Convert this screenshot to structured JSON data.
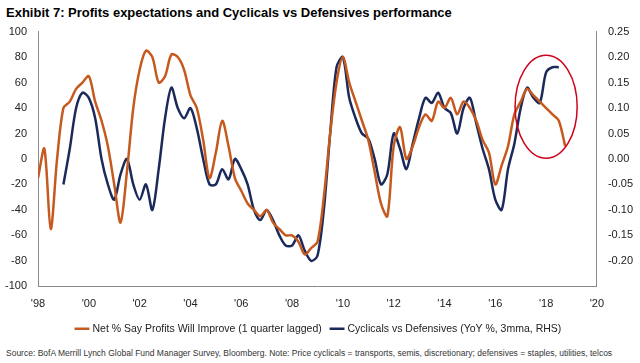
{
  "chart_data": {
    "type": "line",
    "title": "Exhibit 7: Profits expectations and Cyclicals vs Defensives performance",
    "source": "Source:  BofA Merrill Lynch Global Fund Manager Survey, Bloomberg. Note: Price cyclicals = transports, semis, discretionary; defensives = staples, utilities, telcos",
    "x": [
      1998,
      1998.25,
      1998.5,
      1998.75,
      1999,
      1999.25,
      1999.5,
      1999.75,
      2000,
      2000.25,
      2000.5,
      2000.75,
      2001,
      2001.25,
      2001.5,
      2001.75,
      2002,
      2002.25,
      2002.5,
      2002.75,
      2003,
      2003.25,
      2003.5,
      2003.75,
      2004,
      2004.25,
      2004.5,
      2004.75,
      2005,
      2005.25,
      2005.5,
      2005.75,
      2006,
      2006.25,
      2006.5,
      2006.75,
      2007,
      2007.25,
      2007.5,
      2007.75,
      2008,
      2008.25,
      2008.5,
      2008.75,
      2009,
      2009.25,
      2009.5,
      2009.75,
      2010,
      2010.25,
      2010.5,
      2010.75,
      2011,
      2011.25,
      2011.5,
      2011.75,
      2012,
      2012.25,
      2012.5,
      2012.75,
      2013,
      2013.25,
      2013.5,
      2013.75,
      2014,
      2014.25,
      2014.5,
      2014.75,
      2015,
      2015.25,
      2015.5,
      2015.75,
      2016,
      2016.25,
      2016.5,
      2016.75,
      2017,
      2017.25,
      2017.5,
      2017.75,
      2018,
      2018.25,
      2018.5,
      2018.75
    ],
    "series": [
      {
        "name": "Net % Say Profits Will Improve (1 quarter lagged)",
        "color": "#c65a1e",
        "axis": "y",
        "values": [
          -15,
          8,
          -55,
          0,
          40,
          45,
          55,
          60,
          65,
          45,
          30,
          10,
          -20,
          -50,
          -10,
          40,
          70,
          85,
          80,
          60,
          65,
          82,
          80,
          70,
          50,
          40,
          15,
          -15,
          5,
          30,
          10,
          -15,
          -25,
          -35,
          -40,
          -45,
          -40,
          -50,
          -55,
          -60,
          -60,
          -65,
          -75,
          -70,
          -65,
          -30,
          20,
          60,
          80,
          60,
          45,
          30,
          15,
          -10,
          -35,
          -45,
          10,
          25,
          0,
          10,
          25,
          35,
          30,
          45,
          40,
          48,
          35,
          45,
          40,
          30,
          15,
          5,
          -20,
          -5,
          10,
          35,
          45,
          55,
          50,
          45,
          40,
          35,
          30,
          10
        ]
      },
      {
        "name": "Cyclicals vs Defensives (YoY %, 3mma, RHS)",
        "color": "#1b2a5a",
        "axis": "y2",
        "values": [
          null,
          null,
          null,
          null,
          -0.05,
          0.02,
          0.1,
          0.13,
          0.12,
          0.08,
          0.0,
          -0.05,
          -0.08,
          -0.03,
          0.0,
          -0.05,
          -0.08,
          -0.05,
          -0.1,
          -0.02,
          0.08,
          0.14,
          0.1,
          0.08,
          0.1,
          0.06,
          0.0,
          -0.05,
          -0.05,
          -0.02,
          -0.04,
          0.0,
          -0.02,
          -0.05,
          -0.1,
          -0.12,
          -0.1,
          -0.12,
          -0.15,
          -0.17,
          -0.17,
          -0.15,
          -0.18,
          -0.2,
          -0.19,
          -0.1,
          0.05,
          0.18,
          0.2,
          0.12,
          0.08,
          0.05,
          0.04,
          0.0,
          -0.05,
          -0.03,
          0.05,
          0.02,
          -0.02,
          0.03,
          0.08,
          0.12,
          0.11,
          0.13,
          0.1,
          0.09,
          0.05,
          0.1,
          0.12,
          0.07,
          0.02,
          -0.02,
          -0.08,
          -0.1,
          -0.02,
          0.03,
          0.1,
          0.14,
          0.12,
          0.11,
          0.17,
          0.18,
          0.18,
          null
        ]
      }
    ],
    "xlim": [
      1998,
      2020
    ],
    "xticks": [
      {
        "value": 1998,
        "label": "'98"
      },
      {
        "value": 2000,
        "label": "'00"
      },
      {
        "value": 2002,
        "label": "'02"
      },
      {
        "value": 2004,
        "label": "'04"
      },
      {
        "value": 2006,
        "label": "'06"
      },
      {
        "value": 2008,
        "label": "'08"
      },
      {
        "value": 2010,
        "label": "'10"
      },
      {
        "value": 2012,
        "label": "'12"
      },
      {
        "value": 2014,
        "label": "'14"
      },
      {
        "value": 2016,
        "label": "'16"
      },
      {
        "value": 2018,
        "label": "'18"
      },
      {
        "value": 2020,
        "label": "'20"
      }
    ],
    "ylim": [
      -100,
      100
    ],
    "yticks": [
      -100,
      -80,
      -60,
      -40,
      -20,
      0,
      20,
      40,
      60,
      80,
      100
    ],
    "y2lim": [
      -0.25,
      0.25
    ],
    "y2ticks": [
      {
        "value": -0.2,
        "label": "-0.20"
      },
      {
        "value": -0.15,
        "label": "-0.15"
      },
      {
        "value": -0.1,
        "label": "-0.10"
      },
      {
        "value": -0.05,
        "label": "-0.05"
      },
      {
        "value": 0,
        "label": "0.00"
      },
      {
        "value": 0.05,
        "label": "0.05"
      },
      {
        "value": 0.1,
        "label": "0.10"
      },
      {
        "value": 0.15,
        "label": "0.15"
      },
      {
        "value": 0.2,
        "label": "0.20"
      },
      {
        "value": 0.25,
        "label": "0.25"
      }
    ],
    "grid": false,
    "legend": "bottom"
  }
}
